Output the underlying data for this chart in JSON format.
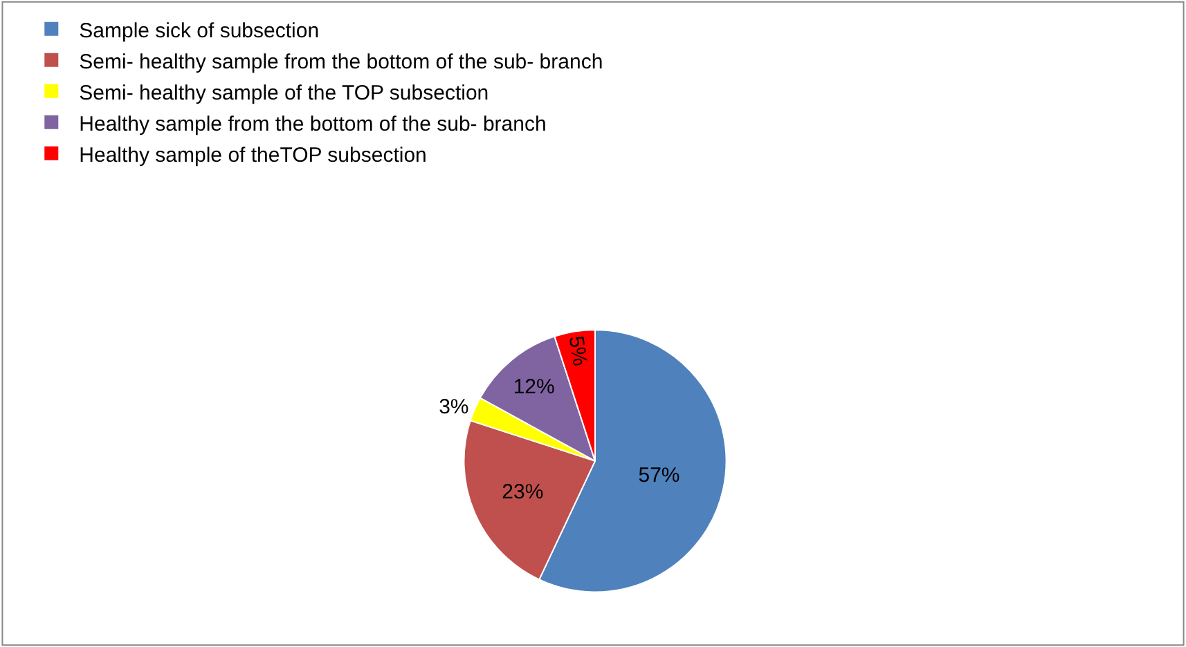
{
  "chart_data": {
    "type": "pie",
    "categories": [
      "Sample sick of subsection",
      "Semi- healthy sample from the bottom of the sub- branch",
      "Semi- healthy sample of the TOP subsection",
      "Healthy sample from the bottom of the sub- branch",
      "Healthy sample of theTOP subsection"
    ],
    "values": [
      57,
      23,
      3,
      12,
      5
    ],
    "colors": [
      "#4f81bd",
      "#c0504d",
      "#ffff00",
      "#8064a2",
      "#ff0000"
    ],
    "value_labels": [
      "57%",
      "23%",
      "3%",
      "12%",
      "5%"
    ],
    "legend": "top left"
  }
}
